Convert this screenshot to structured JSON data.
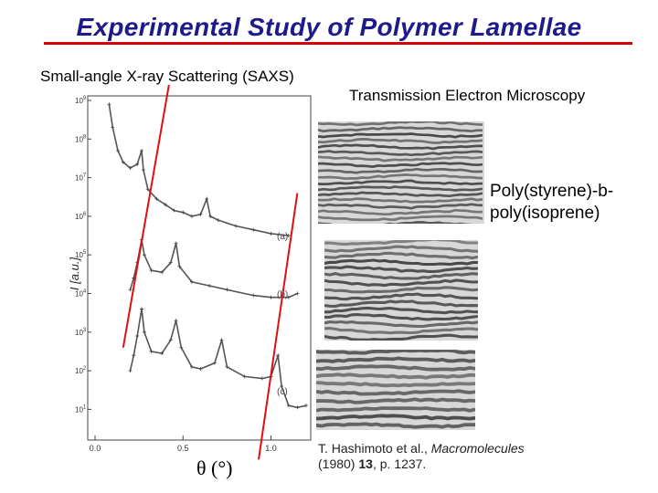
{
  "title": "Experimental Study of Polymer Lamellae",
  "saxs_label": "Small-angle X-ray Scattering (SAXS)",
  "tem_label": "Transmission Electron Microscopy",
  "polymer_name": "Poly(styrene)-b-poly(isoprene)",
  "citation": {
    "authors": "T. Hashimoto et al., ",
    "journal": "Macromolecules",
    "year": "(1980) ",
    "volume": "13",
    "pages": ", p. 1237."
  },
  "colors": {
    "title": "#1f1a8a",
    "rule": "#d40000",
    "guide_lines": "#e01010"
  },
  "chart_data": {
    "type": "line",
    "title": "",
    "xlabel": "θ (°)",
    "ylabel": "I [a.u.]",
    "xlim": [
      0,
      1.2
    ],
    "ylim_log10": [
      0.3,
      9
    ],
    "x_ticks": [
      "0.0",
      "0.5",
      "1.0"
    ],
    "y_ticks": [
      "10^1",
      "10^2",
      "10^3",
      "10^4",
      "10^5",
      "10^6",
      "10^7",
      "10^8",
      "10^9"
    ],
    "series": [
      {
        "name": "(a)",
        "points": [
          [
            0.08,
            8.9
          ],
          [
            0.1,
            8.3
          ],
          [
            0.13,
            7.7
          ],
          [
            0.16,
            7.4
          ],
          [
            0.2,
            7.25
          ],
          [
            0.24,
            7.35
          ],
          [
            0.265,
            7.7
          ],
          [
            0.275,
            7.2
          ],
          [
            0.3,
            6.7
          ],
          [
            0.35,
            6.45
          ],
          [
            0.4,
            6.3
          ],
          [
            0.45,
            6.15
          ],
          [
            0.5,
            6.1
          ],
          [
            0.55,
            6.0
          ],
          [
            0.6,
            6.05
          ],
          [
            0.635,
            6.45
          ],
          [
            0.655,
            6.0
          ],
          [
            0.7,
            5.9
          ],
          [
            0.8,
            5.75
          ],
          [
            0.9,
            5.65
          ],
          [
            1.0,
            5.55
          ],
          [
            1.1,
            5.5
          ]
        ]
      },
      {
        "name": "(b)",
        "points": [
          [
            0.2,
            4.1
          ],
          [
            0.22,
            4.4
          ],
          [
            0.24,
            4.8
          ],
          [
            0.265,
            5.4
          ],
          [
            0.28,
            5.0
          ],
          [
            0.32,
            4.6
          ],
          [
            0.38,
            4.55
          ],
          [
            0.43,
            4.8
          ],
          [
            0.46,
            5.3
          ],
          [
            0.48,
            4.7
          ],
          [
            0.55,
            4.3
          ],
          [
            0.65,
            4.2
          ],
          [
            0.75,
            4.1
          ],
          [
            0.9,
            3.95
          ],
          [
            1.0,
            3.9
          ],
          [
            1.1,
            3.9
          ],
          [
            1.15,
            4.0
          ]
        ]
      },
      {
        "name": "(c)",
        "points": [
          [
            0.2,
            2.0
          ],
          [
            0.22,
            2.4
          ],
          [
            0.24,
            2.9
          ],
          [
            0.265,
            3.6
          ],
          [
            0.28,
            3.0
          ],
          [
            0.32,
            2.5
          ],
          [
            0.38,
            2.45
          ],
          [
            0.43,
            2.8
          ],
          [
            0.46,
            3.3
          ],
          [
            0.49,
            2.6
          ],
          [
            0.55,
            2.1
          ],
          [
            0.6,
            2.05
          ],
          [
            0.68,
            2.2
          ],
          [
            0.72,
            2.8
          ],
          [
            0.75,
            2.1
          ],
          [
            0.85,
            1.85
          ],
          [
            0.95,
            1.8
          ],
          [
            1.0,
            1.85
          ],
          [
            1.04,
            2.4
          ],
          [
            1.06,
            1.6
          ],
          [
            1.1,
            1.1
          ],
          [
            1.15,
            1.05
          ],
          [
            1.2,
            1.1
          ]
        ]
      }
    ],
    "guide_lines": [
      {
        "from": [
          0.42,
          9.4
        ],
        "to": [
          0.16,
          2.6
        ]
      },
      {
        "from": [
          1.15,
          6.6
        ],
        "to": [
          0.93,
          -0.3
        ]
      }
    ]
  }
}
